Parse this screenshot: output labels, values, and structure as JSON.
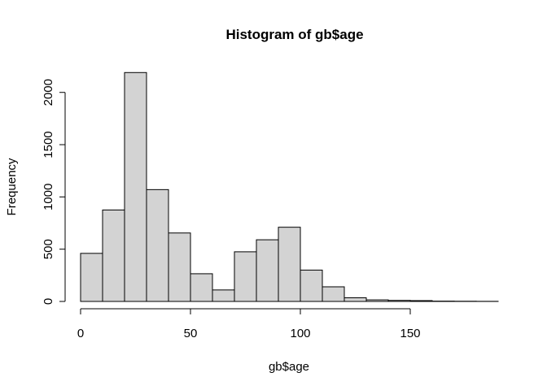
{
  "chart_data": {
    "type": "bar",
    "subtype": "histogram",
    "title": "Histogram of gb$age",
    "xlabel": "gb$age",
    "ylabel": "Frequency",
    "bin_edges": [
      0,
      10,
      20,
      30,
      40,
      50,
      60,
      70,
      80,
      90,
      100,
      110,
      120,
      130,
      140,
      150,
      160,
      170,
      180,
      190
    ],
    "values": [
      460,
      875,
      2190,
      1070,
      655,
      265,
      110,
      475,
      590,
      710,
      300,
      140,
      35,
      15,
      10,
      8,
      3,
      2,
      1
    ],
    "xlim": [
      0,
      190
    ],
    "ylim": [
      0,
      2200
    ],
    "x_ticks": [
      0,
      50,
      100,
      150
    ],
    "x_tick_labels": [
      "0",
      "50",
      "100",
      "150"
    ],
    "y_ticks": [
      0,
      500,
      1000,
      1500,
      2000
    ],
    "y_tick_labels": [
      "0",
      "500",
      "1000",
      "1500",
      "2000"
    ],
    "bar_fill": "#d3d3d3",
    "bar_edge": "#000000",
    "grid": false,
    "legend": "none"
  }
}
